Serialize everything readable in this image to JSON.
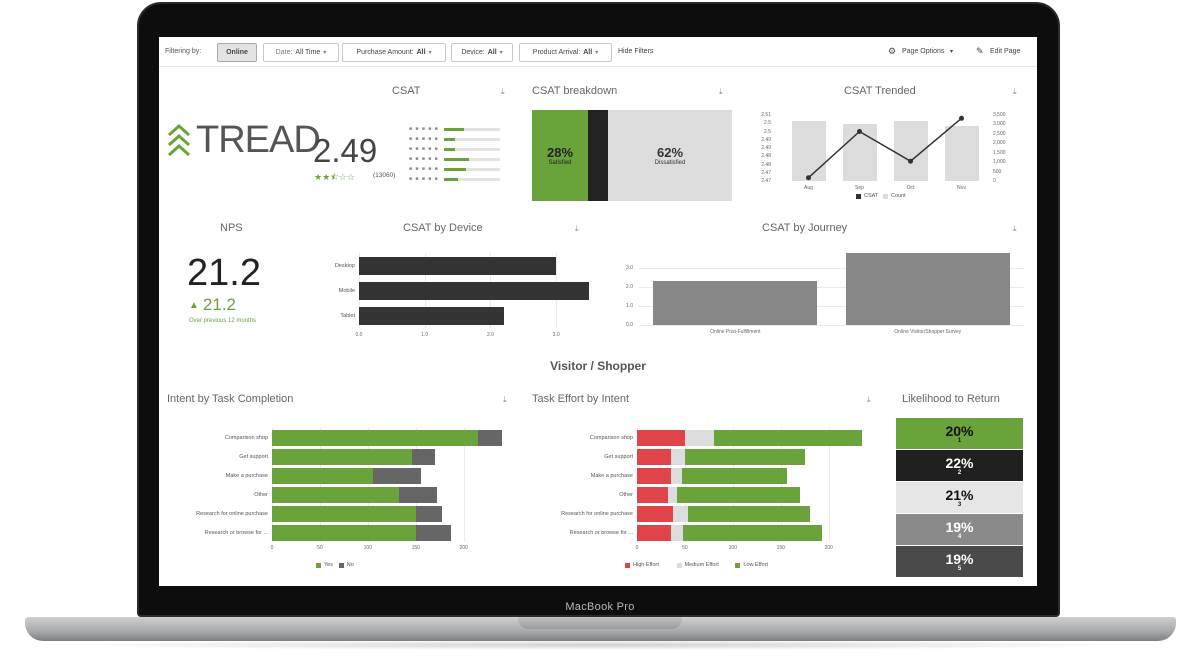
{
  "device": {
    "label": "MacBook Pro"
  },
  "filters": {
    "filtering_by_label": "Filtering by:",
    "items": [
      {
        "label": "Online",
        "value": ""
      },
      {
        "label": "Date:",
        "value": "All Time"
      },
      {
        "label": "Purchase Amount:",
        "value": "All"
      },
      {
        "label": "Device:",
        "value": "All"
      },
      {
        "label": "Product Arrival:",
        "value": "All"
      }
    ],
    "hide_filters": "Hide Filters",
    "page_options": "Page Options",
    "edit_page": "Edit Page"
  },
  "brand": {
    "name": "TREAD"
  },
  "csat": {
    "title": "CSAT",
    "score": "2.49",
    "star_rating": 2.5,
    "count": "(13060)",
    "star_rows": [
      0.35,
      0.2,
      0.2,
      0.45,
      0.4,
      0.25
    ]
  },
  "csat_breakdown": {
    "title": "CSAT breakdown",
    "satisfied_pct": "28%",
    "satisfied_label": "Satisfied",
    "dissatisfied_pct": "62%",
    "dissatisfied_label": "Dissatisfied",
    "neutral_fraction": 0.1
  },
  "csat_trended": {
    "title": "CSAT Trended",
    "legend": [
      "CSAT",
      "Count"
    ]
  },
  "nps": {
    "title": "NPS",
    "value": "21.2",
    "change": "21.2",
    "change_note": "Over previous 12 months"
  },
  "panel_titles": {
    "csat_by_device": "CSAT by Device",
    "csat_by_journey": "CSAT by Journey",
    "section": "Visitor / Shopper",
    "intent": "Intent by Task Completion",
    "effort": "Task Effort by Intent",
    "likelihood": "Likelihood to Return"
  },
  "likelihood_to_return": [
    {
      "pct": "20%",
      "rank": "1",
      "color": "#6aa23c",
      "text": "#111111"
    },
    {
      "pct": "22%",
      "rank": "2",
      "color": "#202020",
      "text": "#ffffff"
    },
    {
      "pct": "21%",
      "rank": "3",
      "color": "#e6e6e6",
      "text": "#111111"
    },
    {
      "pct": "19%",
      "rank": "4",
      "color": "#8a8a8a",
      "text": "#ffffff"
    },
    {
      "pct": "19%",
      "rank": "5",
      "color": "#4a4a4a",
      "text": "#ffffff"
    }
  ],
  "colors": {
    "green": "#6aa23c",
    "dark": "#333333",
    "red": "#e0434a",
    "light_gray": "#dcdcdc",
    "mid_gray": "#888888"
  },
  "chart_data": [
    {
      "id": "csat_trended",
      "type": "bar+line",
      "categories": [
        "Aug",
        "Sep",
        "Oct",
        "Nov"
      ],
      "series": [
        {
          "name": "CSAT",
          "type": "line",
          "values": [
            2.472,
            2.5,
            2.482,
            2.508
          ]
        },
        {
          "name": "Count",
          "type": "bar",
          "values": [
            3200,
            3000,
            3200,
            2900
          ]
        }
      ],
      "ylim_left": [
        2.47,
        2.51
      ],
      "yticks_left": [
        "2.51",
        "2.5",
        "2.5",
        "2.49",
        "2.49",
        "2.48",
        "2.48",
        "2.47",
        "2.47"
      ],
      "ylim_right": [
        0,
        3500
      ],
      "yticks_right": [
        "3,500",
        "3,000",
        "2,500",
        "2,000",
        "1,500",
        "1,000",
        "500",
        "0"
      ]
    },
    {
      "id": "csat_by_device",
      "type": "bar",
      "orientation": "horizontal",
      "categories": [
        "Desktop",
        "Mobile",
        "Tablet"
      ],
      "values": [
        3.0,
        3.5,
        2.2
      ],
      "xlim": [
        0,
        3.5
      ],
      "xticks": [
        "0.0",
        "1.0",
        "2.0",
        "3.0"
      ]
    },
    {
      "id": "csat_by_journey",
      "type": "bar",
      "categories": [
        "Online Post-Fulfillment",
        "Online Visitor/Shopper Survey"
      ],
      "values": [
        2.3,
        3.8
      ],
      "ylim": [
        0,
        3.8
      ],
      "yticks": [
        "0.0",
        "1.0",
        "2.0",
        "3.0"
      ]
    },
    {
      "id": "intent_by_task_completion",
      "type": "bar",
      "orientation": "horizontal",
      "stacked": true,
      "categories": [
        "Comparison shop",
        "Get support",
        "Make a purchase",
        "Other",
        "Research for online purchase",
        "Research or browse for ..."
      ],
      "series": [
        {
          "name": "Yes",
          "values": [
            215,
            146,
            105,
            132,
            150,
            150
          ]
        },
        {
          "name": "No",
          "values": [
            25,
            24,
            50,
            40,
            27,
            37
          ]
        }
      ],
      "xlim": [
        0,
        240
      ],
      "xticks": [
        "0",
        "50",
        "100",
        "150",
        "200"
      ]
    },
    {
      "id": "task_effort_by_intent",
      "type": "bar",
      "orientation": "horizontal",
      "stacked": true,
      "categories": [
        "Comparison shop",
        "Get support",
        "Make a purchase",
        "Other",
        "Research for online purchase",
        "Research or browse for ..."
      ],
      "series": [
        {
          "name": "High Effort",
          "values": [
            50,
            35,
            35,
            32,
            38,
            35
          ]
        },
        {
          "name": "Medium Effort",
          "values": [
            30,
            15,
            12,
            10,
            15,
            13
          ]
        },
        {
          "name": "Low Effort",
          "values": [
            155,
            125,
            110,
            128,
            128,
            145
          ]
        }
      ],
      "xlim": [
        0,
        240
      ],
      "xticks": [
        "0",
        "50",
        "100",
        "150",
        "200"
      ]
    }
  ]
}
